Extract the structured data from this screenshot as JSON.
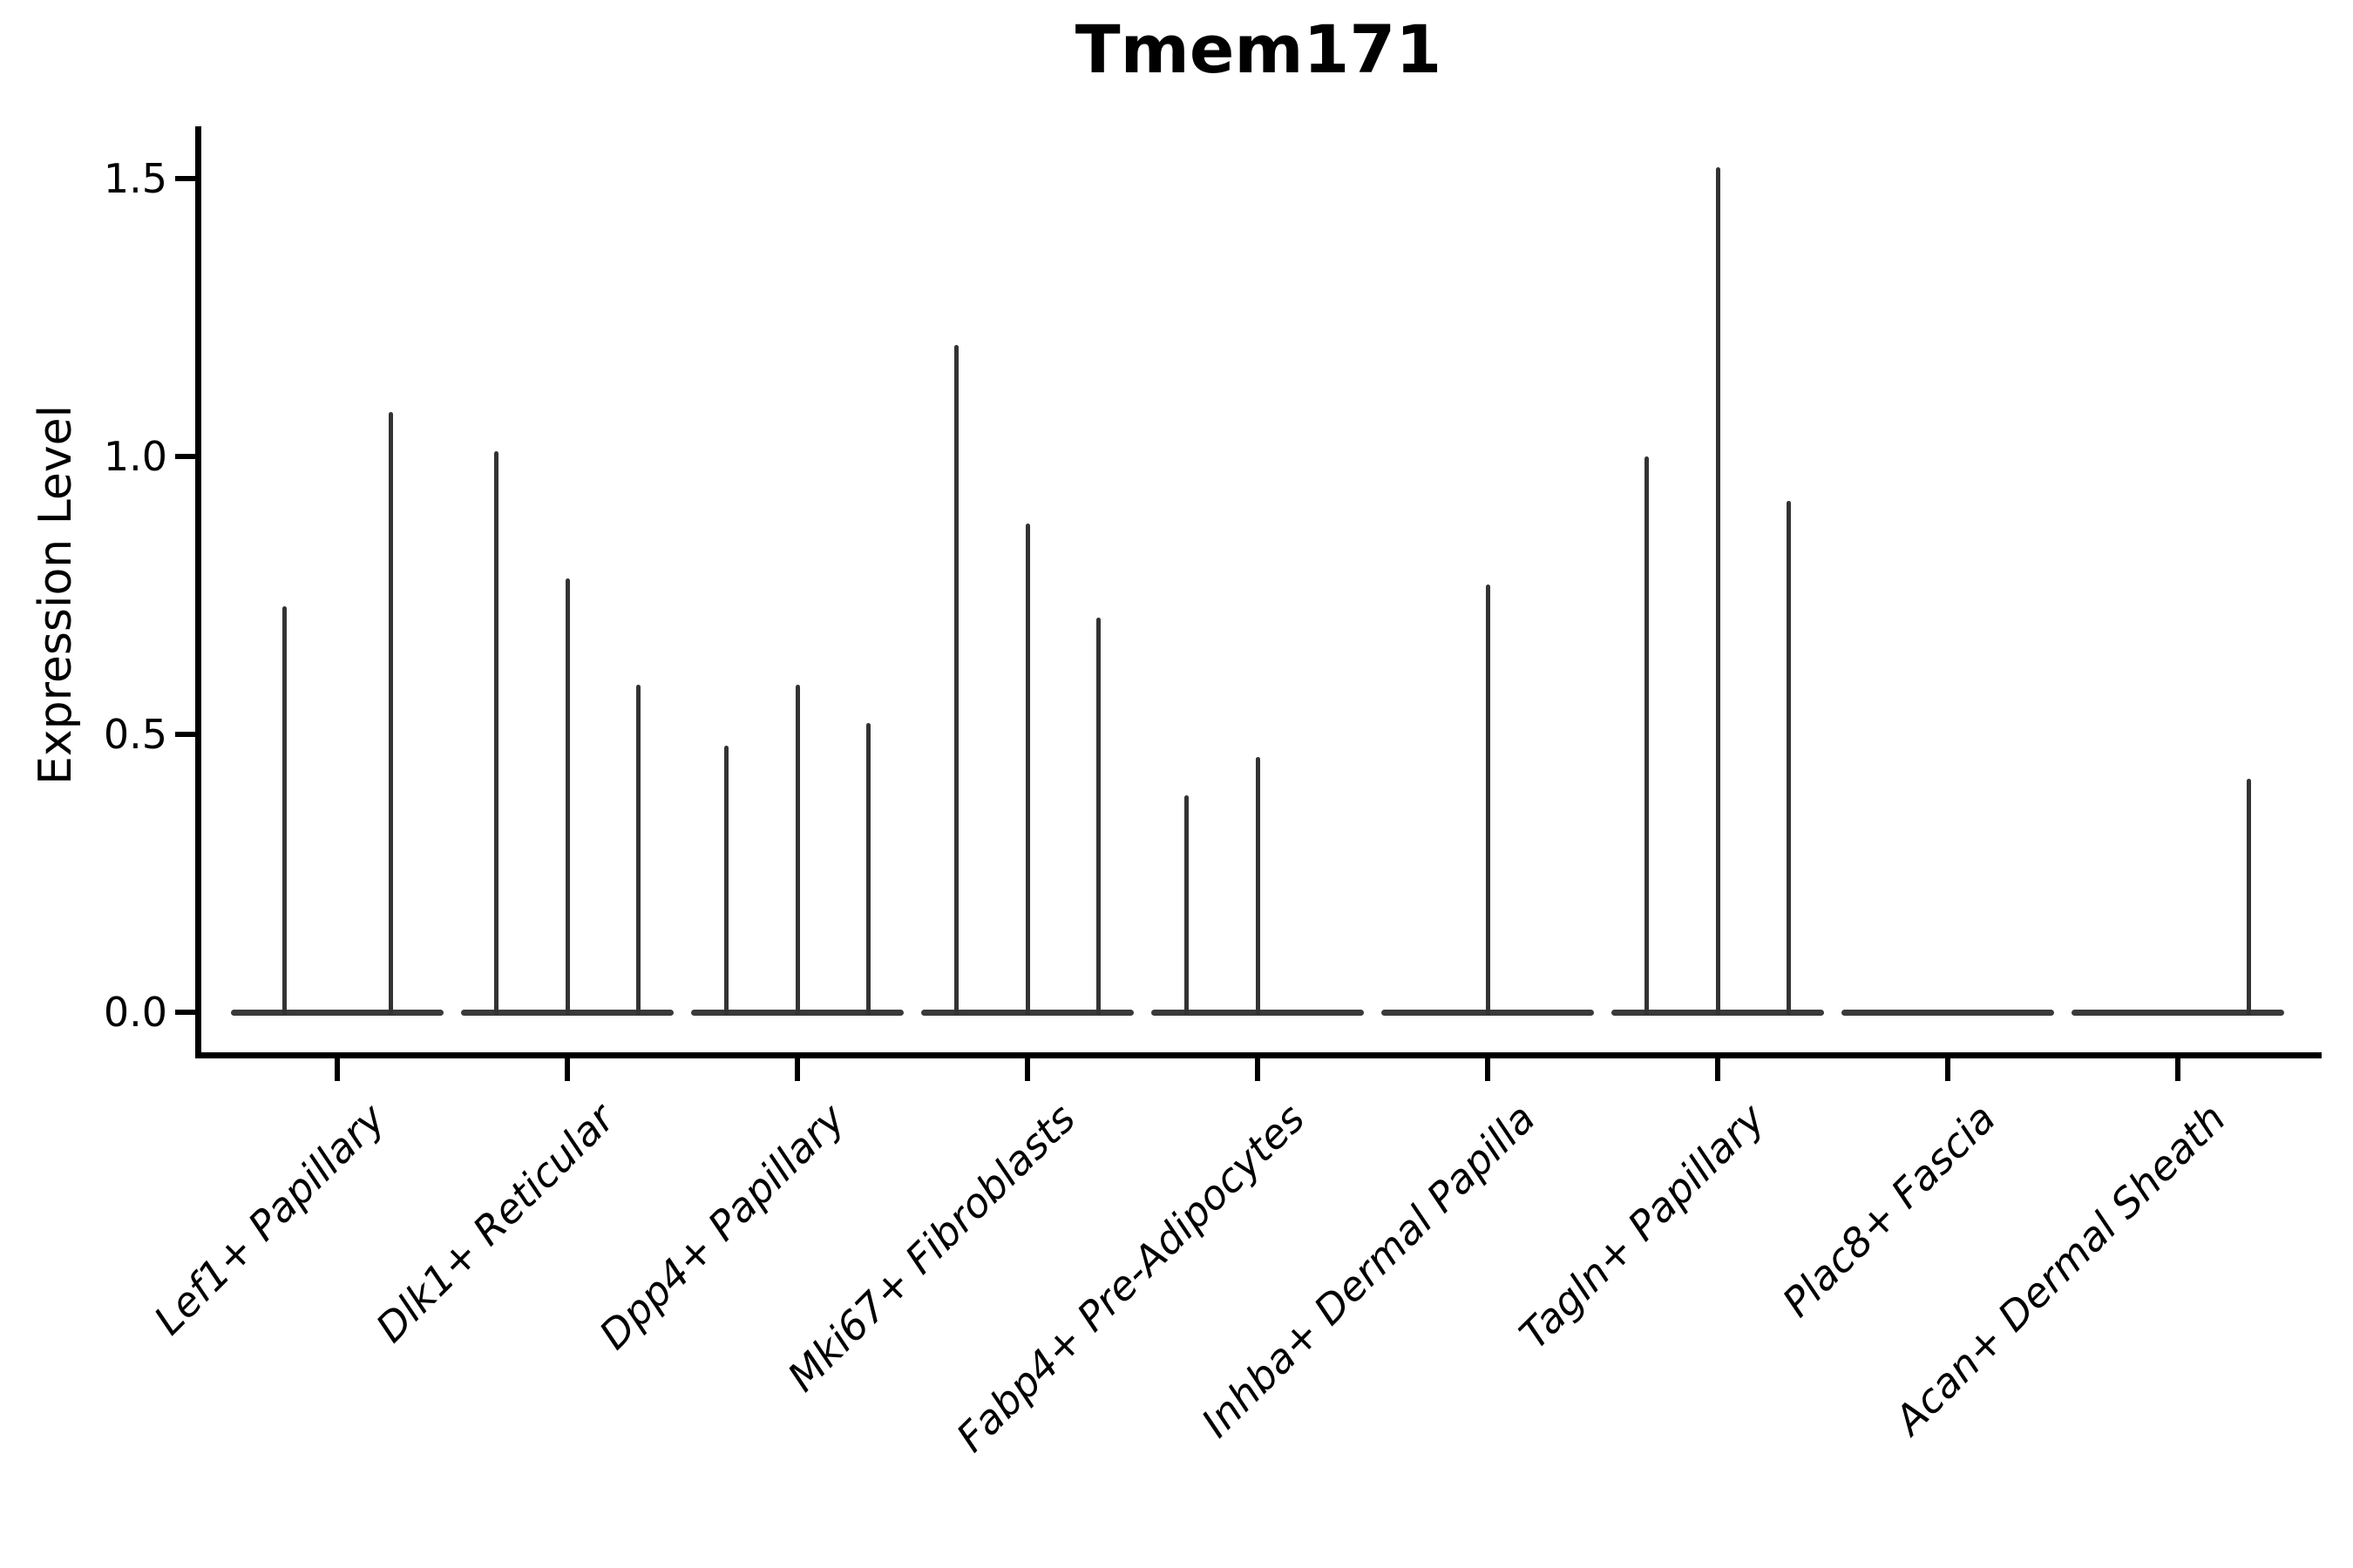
{
  "figure": {
    "title": "Tmem171"
  },
  "axes": {
    "ylabel": "Expression Level",
    "ytick_labels": [
      "0.0",
      "0.5",
      "1.0",
      "1.5"
    ]
  },
  "colors": {
    "background": "#ffffff",
    "axis": "#000000",
    "text": "#000000",
    "baseline": "#3a3a3a",
    "violin_stroke": "#333333"
  },
  "chart_data": {
    "type": "violin",
    "title": "Tmem171",
    "xlabel": "",
    "ylabel": "Expression Level",
    "ylim": [
      -0.08,
      1.59
    ],
    "yticks": [
      0.0,
      0.5,
      1.0,
      1.5
    ],
    "grid": false,
    "legend": "none",
    "categories": [
      "Lef1+ Papillary",
      "Dlk1+ Reticular",
      "Dpp4+ Papillary",
      "Mki67+ Fibroblasts",
      "Fabp4+ Pre-Adipocytes",
      "Inhba+ Dermal Papilla",
      "Tagln+ Papillary",
      "Plac8+ Fascia",
      "Acan+ Dermal Sheath"
    ],
    "series": [
      {
        "category": "Lef1+ Papillary",
        "violin_peaks": [
          0.73,
          1.08
        ]
      },
      {
        "category": "Dlk1+ Reticular",
        "violin_peaks": [
          1.01,
          0.78,
          0.59
        ]
      },
      {
        "category": "Dpp4+ Papillary",
        "violin_peaks": [
          0.48,
          0.59,
          0.52
        ]
      },
      {
        "category": "Mki67+ Fibroblasts",
        "violin_peaks": [
          1.2,
          0.88,
          0.71
        ]
      },
      {
        "category": "Fabp4+ Pre-Adipocytes",
        "violin_peaks": [
          0.39,
          0.46,
          0.0
        ]
      },
      {
        "category": "Inhba+ Dermal Papilla",
        "violin_peaks": [
          0.0,
          0.77,
          0.0
        ]
      },
      {
        "category": "Tagln+ Papillary",
        "violin_peaks": [
          1.0,
          1.52,
          0.92
        ]
      },
      {
        "category": "Plac8+ Fascia",
        "violin_peaks": [
          0.0,
          0.0,
          0.0
        ]
      },
      {
        "category": "Acan+ Dermal Sheath",
        "violin_peaks": [
          0.0,
          0.0,
          0.42
        ]
      }
    ],
    "description": "Violin plot of Tmem171 expression level per fibroblast subtype; each category shows multiple near-zero-width violins (flat zero-density baseline bars with thin vertical spikes at the expression maxima)."
  }
}
